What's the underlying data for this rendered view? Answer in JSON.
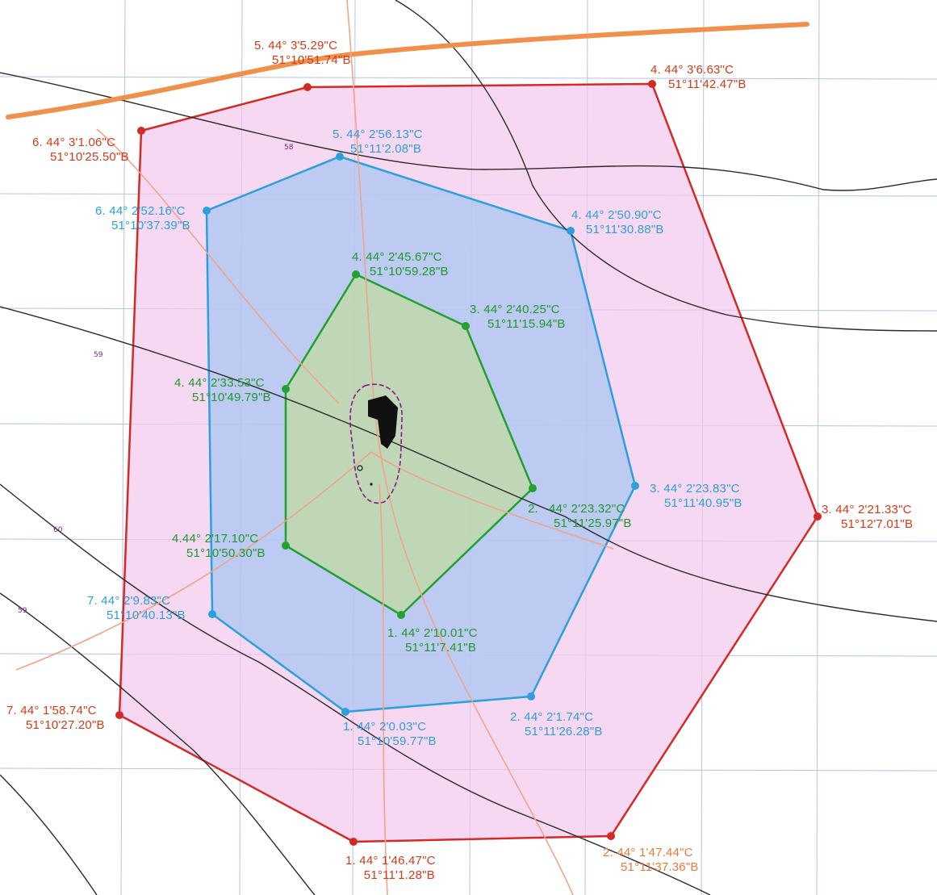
{
  "colors": {
    "background": "#ffffff",
    "grid": "#9aa9d6",
    "contour": "#2a2a2a",
    "road_main": "#f1904a",
    "road_minor": "#f0a488",
    "zone_outer_fill": "#f3c8ee",
    "zone_outer_stroke": "#d42a26",
    "zone_middle_fill": "#a9c6f2",
    "zone_middle_stroke": "#2ba0dc",
    "zone_inner_fill": "#bfd9a8",
    "zone_inner_stroke": "#21a12e",
    "site_fill": "#111111",
    "site_boundary": "#8a1a8a"
  },
  "contour_labels": [
    "58",
    "59",
    "60",
    "59"
  ],
  "zones": {
    "outer": {
      "points": [
        {
          "num": "1.",
          "lon": "44° 1'46.47\"C",
          "lat": "51°11'1.28\"B"
        },
        {
          "num": "2.",
          "lon": "44° 1'47.44\"C",
          "lat": "51°11'37.36\"B"
        },
        {
          "num": "3.",
          "lon": "44° 2'21.33\"C",
          "lat": "51°12'7.01\"B"
        },
        {
          "num": "4.",
          "lon": "44° 3'6.63\"C",
          "lat": "51°11'42.47\"B"
        },
        {
          "num": "5.",
          "lon": "44° 3'5.29\"C",
          "lat": "51°10'51.74\"B"
        },
        {
          "num": "6.",
          "lon": "44° 3'1.06\"C",
          "lat": "51°10'25.50\"B"
        },
        {
          "num": "7.",
          "lon": "44° 1'58.74\"C",
          "lat": "51°10'27.20\"B"
        }
      ]
    },
    "middle": {
      "points": [
        {
          "num": "1.",
          "lon": "44° 2'0.03\"C",
          "lat": "51°10'59.77\"B"
        },
        {
          "num": "2.",
          "lon": "44° 2'1.74\"C",
          "lat": "51°11'26.28\"B"
        },
        {
          "num": "3.",
          "lon": "44° 2'23.83\"C",
          "lat": "51°11'40.95\"B"
        },
        {
          "num": "4.",
          "lon": "44° 2'50.90\"C",
          "lat": "51°11'30.88\"B"
        },
        {
          "num": "5.",
          "lon": "44° 2'56.13\"C",
          "lat": "51°11'2.08\"B"
        },
        {
          "num": "6.",
          "lon": "44° 2'52.16\"C",
          "lat": "51°10'37.39\"B"
        },
        {
          "num": "7.",
          "lon": "44° 2'9.83\"C",
          "lat": "51°10'40.13\"B"
        }
      ]
    },
    "inner": {
      "points": [
        {
          "num": "1.",
          "lon": "44° 2'10.01\"C",
          "lat": "51°11'7.41\"B"
        },
        {
          "num": "2.",
          "lon": "44° 2'23.32\"C",
          "lat": "51°11'25.97\"B"
        },
        {
          "num": "3.",
          "lon": "44° 2'40.25\"C",
          "lat": "51°11'15.94\"B"
        },
        {
          "num": "4.",
          "lon": "44° 2'45.67\"C",
          "lat": "51°10'59.28\"B"
        },
        {
          "num": "4.",
          "lon": "44° 2'33.53\"C",
          "lat": "51°10'49.79\"B"
        },
        {
          "num": "4.",
          "lon": "44° 2'17.10\"C",
          "lat": "51°10'50.30\"B"
        }
      ]
    }
  }
}
